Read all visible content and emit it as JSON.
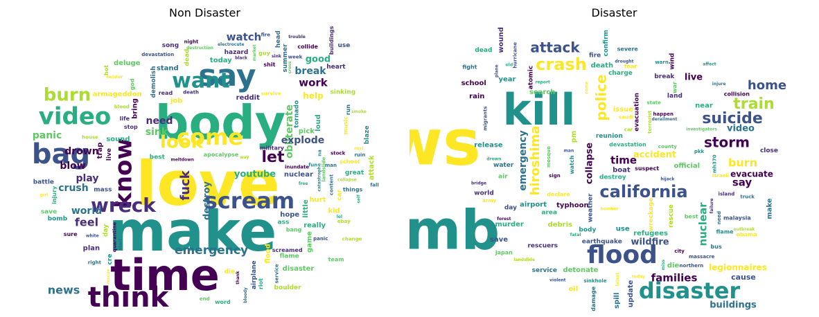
{
  "panels": [
    {
      "title": "Non Disaster",
      "words": [
        "love",
        "make",
        "body",
        "time",
        "say",
        "bag",
        "video",
        "think",
        "want",
        "know",
        "come",
        "scream",
        "wreck",
        "burn",
        "look",
        "let",
        "emergency",
        "fuck",
        "news",
        "watch",
        "obliterate",
        "work",
        "break",
        "explode",
        "need",
        "feel",
        "world",
        "play",
        "crush",
        "drown",
        "blow",
        "panic",
        "sink",
        "destroy",
        "youtube",
        "good",
        "help",
        "reddit",
        "deluge",
        "right",
        "black",
        "run",
        "read",
        "day",
        "really",
        "life",
        "survive",
        "plan",
        "attack",
        "live",
        "quarantine",
        "electrocute",
        "lol",
        "fall",
        "man",
        "way",
        "best",
        "great",
        "fire",
        "school",
        "content",
        "demolish",
        "flood",
        "god",
        "music",
        "bomb",
        "bring",
        "hope",
        "riot",
        "service",
        "sound",
        "today",
        "use",
        "start",
        "military",
        "head",
        "end",
        "change",
        "cross",
        "collide",
        "hurt",
        "trap",
        "stop",
        "blood",
        "nuclear",
        "battle",
        "injury",
        "girl",
        "game",
        "shit",
        "heart",
        "bang",
        "car",
        "ass",
        "destruction",
        "stand",
        "ebay",
        "job",
        "blaze",
        "thank",
        "word",
        "market",
        "team",
        "house",
        "buildings",
        "collapse",
        "disaster",
        "twister",
        "summer",
        "dead",
        "free",
        "hot",
        "fun",
        "real",
        "night",
        "bloody",
        "stock",
        "things",
        "hazard",
        "self",
        "save",
        "leave",
        "rescue",
        "kid",
        "sure",
        "little",
        "flame",
        "smoke",
        "death",
        "week",
        "ruin",
        "devastation",
        "apocalypse",
        "inundate",
        "white",
        "loud",
        "die",
        "na",
        "catastrophe",
        "armageddon",
        "song",
        "sink",
        "guy",
        "panic",
        "meltdown",
        "cre",
        "trouble",
        "boulder",
        "sinking",
        "tornado",
        "pick",
        "airplane",
        "screamed",
        "landslide",
        "mass"
      ]
    },
    {
      "title": "Disaster",
      "words": [
        "news",
        "bomb",
        "kill",
        "flood",
        "disaster",
        "california",
        "suicide",
        "crash",
        "attack",
        "police",
        "storm",
        "hiroshima",
        "train",
        "home",
        "burn",
        "say",
        "time",
        "emergency",
        "families",
        "nuclear",
        "wildfire",
        "buildings",
        "accident",
        "collapse",
        "live",
        "video",
        "legionnaires",
        "evacuate",
        "cause",
        "northern",
        "latest",
        "watch",
        "fire",
        "sign",
        "report",
        "forest",
        "bomber",
        "japan",
        "malaysia",
        "year",
        "near",
        "atomic",
        "obama",
        "mh370",
        "spill",
        "derailment",
        "land",
        "investigators",
        "severe",
        "massacre",
        "charge",
        "issue",
        "truck",
        "fear",
        "make",
        "come",
        "suspect",
        "today",
        "war",
        "confirm",
        "save",
        "debris",
        "release",
        "refugees",
        "migrants",
        "wreckage",
        "damage",
        "detonate",
        "dead",
        "school",
        "water",
        "world",
        "death",
        "miss",
        "rescue",
        "rescuers",
        "typhoon",
        "search",
        "israeli",
        "saudi",
        "mosque",
        "oil",
        "army",
        "boat",
        "earthquake",
        "hijack",
        "hurricane",
        "old",
        "city",
        "murder",
        "break",
        "destroy",
        "injure",
        "area",
        "state",
        "air",
        "fatal",
        "declare",
        "evacuation",
        "weather",
        "outbreak",
        "drown",
        "bridge",
        "day",
        "violent",
        "official",
        "devastation",
        "affect",
        "airport",
        "wind",
        "drought",
        "flame",
        "man",
        "body",
        "county",
        "rain",
        "collision",
        "terrorist",
        "plane",
        "failure",
        "island",
        "car",
        "need",
        "use",
        "best",
        "reunion",
        "pkk",
        "landslide",
        "update",
        "sinkhole",
        "bus",
        "wound",
        "close",
        "warn",
        "die",
        "service",
        "fight",
        "happen",
        "pm"
      ]
    }
  ],
  "colors": {
    "dark_purple": "#440154",
    "indigo": "#472d7b",
    "slate_blue": "#3b528b",
    "steel_blue": "#2c728e",
    "teal": "#21918c",
    "sea_green": "#28ae80",
    "green": "#5ec962",
    "lime": "#addc30",
    "yellow": "#fde725"
  }
}
